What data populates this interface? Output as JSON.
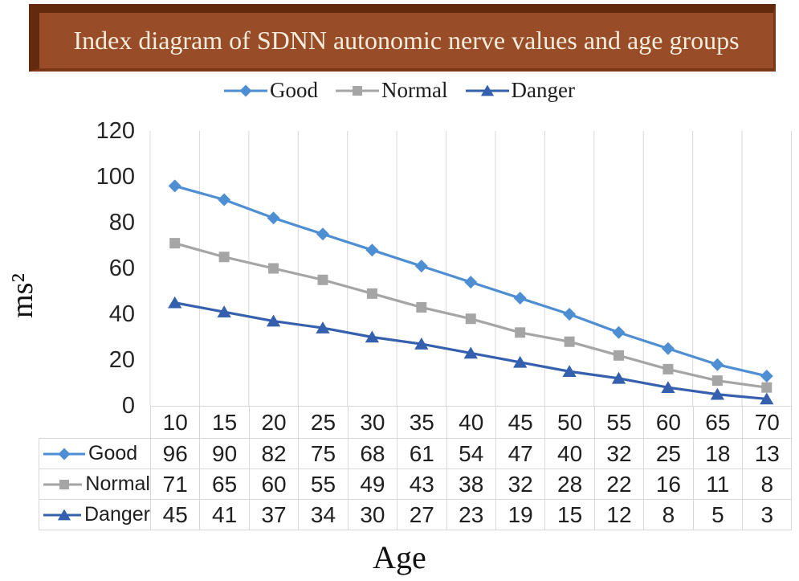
{
  "title": {
    "text": "Index diagram of SDNN autonomic nerve values and age groups"
  },
  "colors": {
    "plaque_face": "#984C28",
    "plaque_edge_dark": "#632A0E",
    "plaque_edge_mid": "#7A3716",
    "title_text": "#F5EDDC",
    "grid": "#D8D8D8",
    "tick_text": "#262626",
    "good": "#4E8ED3",
    "normal": "#A5A5A5",
    "danger": "#3560AE"
  },
  "chart_data": {
    "type": "line",
    "title": "Index diagram of SDNN autonomic nerve values and age groups",
    "xlabel": "Age",
    "ylabel": "ms²",
    "categories": [
      10,
      15,
      20,
      25,
      30,
      35,
      40,
      45,
      50,
      55,
      60,
      65,
      70
    ],
    "y_ticks": [
      0,
      20,
      40,
      60,
      80,
      100,
      120
    ],
    "ylim": [
      0,
      120
    ],
    "grid": "vertical-only",
    "legend_position": "top",
    "legend_labels": [
      "Good",
      "Normal",
      "Danger"
    ],
    "series": [
      {
        "name": "Good",
        "marker": "diamond",
        "color": "#4E8ED3",
        "values": [
          96,
          90,
          82,
          75,
          68,
          61,
          54,
          47,
          40,
          32,
          25,
          18,
          13
        ]
      },
      {
        "name": "Normal",
        "marker": "square",
        "color": "#A5A5A5",
        "values": [
          71,
          65,
          60,
          55,
          49,
          43,
          38,
          32,
          28,
          22,
          16,
          11,
          8
        ]
      },
      {
        "name": "Danger",
        "marker": "triangle",
        "color": "#3560AE",
        "values": [
          45,
          41,
          37,
          34,
          30,
          27,
          23,
          19,
          15,
          12,
          8,
          5,
          3
        ]
      }
    ]
  }
}
